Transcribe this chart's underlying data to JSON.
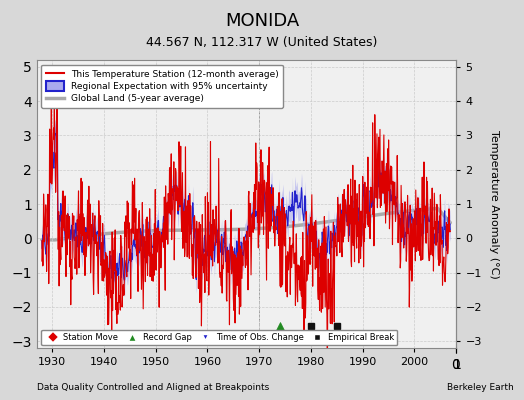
{
  "title": "MONIDA",
  "subtitle": "44.567 N, 112.317 W (United States)",
  "xlabel_left": "Data Quality Controlled and Aligned at Breakpoints",
  "xlabel_right": "Berkeley Earth",
  "ylabel": "Temperature Anomaly (°C)",
  "xlim": [
    1927,
    2008
  ],
  "ylim": [
    -3.2,
    5.2
  ],
  "yticks_right": [
    -3,
    -2,
    -1,
    0,
    1,
    2,
    3,
    4,
    5
  ],
  "xticks": [
    1930,
    1940,
    1950,
    1960,
    1970,
    1980,
    1990,
    2000
  ],
  "outer_bg": "#d8d8d8",
  "plot_bg": "#f0f0f0",
  "grid_color": "#cccccc",
  "station_color": "#dd0000",
  "regional_line_color": "#2222cc",
  "regional_fill_color": "#aaaaee",
  "global_color": "#aaaaaa",
  "legend_items": [
    {
      "label": "This Temperature Station (12-month average)",
      "color": "#dd0000"
    },
    {
      "label": "Regional Expectation with 95% uncertainty",
      "color": "#2222cc"
    },
    {
      "label": "Global Land (5-year average)",
      "color": "#aaaaaa"
    }
  ],
  "marker_items": [
    {
      "label": "Station Move",
      "color": "#dd0000",
      "marker": "D"
    },
    {
      "label": "Record Gap",
      "color": "#228B22",
      "marker": "^"
    },
    {
      "label": "Time of Obs. Change",
      "color": "#2222cc",
      "marker": "v"
    },
    {
      "label": "Empirical Break",
      "color": "#111111",
      "marker": "s"
    }
  ],
  "record_gap_years": [
    1974
  ],
  "empirical_break_years": [
    1980,
    1985
  ],
  "seed": 12345
}
